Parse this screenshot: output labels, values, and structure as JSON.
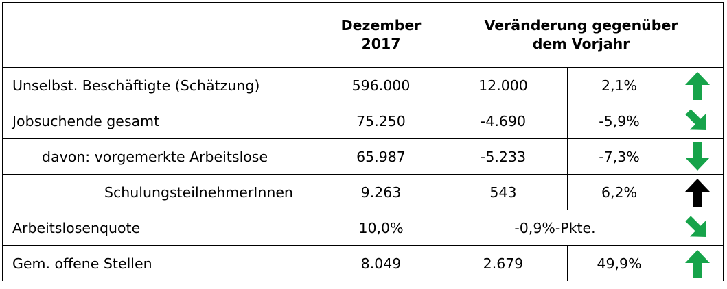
{
  "header": {
    "col_month": "Dezember\n2017",
    "col_change": "Veränderung gegenüber\ndem Vorjahr"
  },
  "rows": [
    {
      "label": "Unselbst. Beschäftigte (Schätzung)",
      "value": "596.000",
      "abs_change": "12.000",
      "pct_change": "2,1%",
      "trend_icon": "arrow-up-icon",
      "trend_color": "#16a34a"
    },
    {
      "label": "Jobsuchende gesamt",
      "value": "75.250",
      "abs_change": "-4.690",
      "pct_change": "-5,9%",
      "trend_icon": "arrow-down-right-icon",
      "trend_color": "#16a34a"
    },
    {
      "label": "davon: vorgemerkte Arbeitslose",
      "value": "65.987",
      "abs_change": "-5.233",
      "pct_change": "-7,3%",
      "trend_icon": "arrow-down-icon",
      "trend_color": "#16a34a"
    },
    {
      "label": "SchulungsteilnehmerInnen",
      "value": "9.263",
      "abs_change": "543",
      "pct_change": "6,2%",
      "trend_icon": "arrow-up-icon",
      "trend_color": "#000000"
    },
    {
      "label": "Arbeitslosenquote",
      "value": "10,0%",
      "combined_change": "-0,9%-Pkte.",
      "trend_icon": "arrow-down-right-icon",
      "trend_color": "#16a34a"
    },
    {
      "label": "Gem. offene Stellen",
      "value": "8.049",
      "abs_change": "2.679",
      "pct_change": "49,9%",
      "trend_icon": "arrow-up-icon",
      "trend_color": "#16a34a"
    }
  ]
}
